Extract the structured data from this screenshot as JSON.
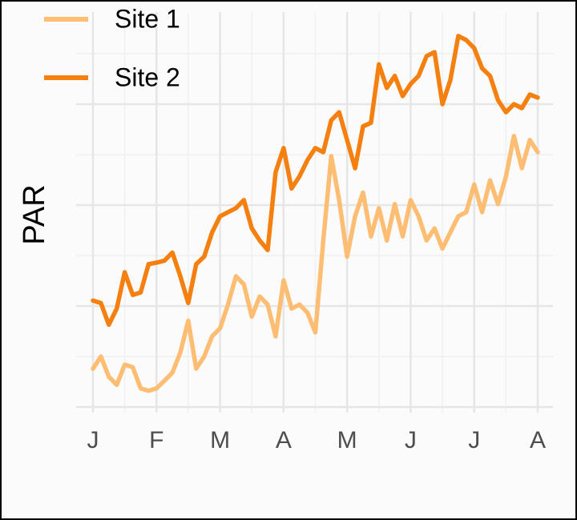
{
  "chart_data": {
    "type": "line",
    "ylabel": "PAR",
    "x": [
      0,
      0.125,
      0.25,
      0.375,
      0.5,
      0.625,
      0.75,
      0.875,
      1,
      1.125,
      1.25,
      1.375,
      1.5,
      1.625,
      1.75,
      1.875,
      2,
      2.125,
      2.25,
      2.375,
      2.5,
      2.625,
      2.75,
      2.875,
      3,
      3.125,
      3.25,
      3.375,
      3.5,
      3.625,
      3.75,
      3.875,
      4,
      4.125,
      4.25,
      4.375,
      4.5,
      4.625,
      4.75,
      4.875,
      5,
      5.125,
      5.25,
      5.375,
      5.5,
      5.625,
      5.75,
      5.875,
      6,
      6.125,
      6.25,
      6.375,
      6.5,
      6.625,
      6.75,
      6.875,
      7
    ],
    "series": [
      {
        "name": "Site 1",
        "color": "#fdbe74",
        "values": [
          0.76,
          1.0,
          0.6,
          0.44,
          0.84,
          0.79,
          0.37,
          0.32,
          0.37,
          0.52,
          0.68,
          1.08,
          1.71,
          0.76,
          1.0,
          1.4,
          1.56,
          2.03,
          2.59,
          2.43,
          1.79,
          2.19,
          2.03,
          1.4,
          2.51,
          1.95,
          2.03,
          1.87,
          1.48,
          3.3,
          4.97,
          4.1,
          2.98,
          3.78,
          4.25,
          3.38,
          3.94,
          3.3,
          4.02,
          3.38,
          4.1,
          3.78,
          3.3,
          3.54,
          3.14,
          3.46,
          3.78,
          3.86,
          4.41,
          3.86,
          4.49,
          4.02,
          4.57,
          5.37,
          4.73,
          5.29,
          5.05
        ]
      },
      {
        "name": "Site 2",
        "color": "#f57f0f",
        "values": [
          2.11,
          2.06,
          1.63,
          1.95,
          2.67,
          2.22,
          2.27,
          2.83,
          2.86,
          2.9,
          3.06,
          2.59,
          2.06,
          2.83,
          2.98,
          3.46,
          3.78,
          3.86,
          3.94,
          4.1,
          3.54,
          3.3,
          3.11,
          4.65,
          5.13,
          4.33,
          4.57,
          4.89,
          5.13,
          5.05,
          5.68,
          5.84,
          5.29,
          4.73,
          5.56,
          5.63,
          6.79,
          6.32,
          6.56,
          6.16,
          6.4,
          6.56,
          6.95,
          7.03,
          6.0,
          6.48,
          7.35,
          7.27,
          7.11,
          6.71,
          6.56,
          6.08,
          5.84,
          6.0,
          5.92,
          6.19,
          6.13
        ]
      }
    ],
    "xlim": [
      0,
      7
    ],
    "xticks": [
      {
        "value": 0,
        "label": "J"
      },
      {
        "value": 1,
        "label": "F"
      },
      {
        "value": 2,
        "label": "M"
      },
      {
        "value": 3,
        "label": "A"
      },
      {
        "value": 4,
        "label": "M"
      },
      {
        "value": 5,
        "label": "J"
      },
      {
        "value": 6,
        "label": "J"
      },
      {
        "value": 7,
        "label": "A"
      }
    ],
    "ylim": [
      0,
      7.7
    ],
    "yticks": [
      0,
      2,
      4,
      6
    ],
    "grid": true,
    "legend": "top-left"
  }
}
